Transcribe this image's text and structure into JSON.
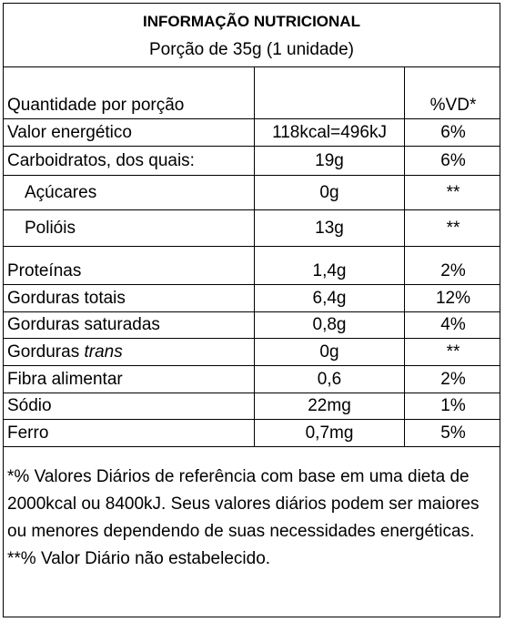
{
  "title": "INFORMAÇÃO NUTRICIONAL",
  "subtitle": "Porção de 35g (1 unidade)",
  "table": {
    "header": {
      "quantity_label": "Quantidade por porção",
      "dv_label": "%VD*"
    },
    "rows": [
      {
        "name": "Valor energético",
        "amount": "118kcal=496kJ",
        "dv": "6%"
      },
      {
        "name": "Carboidratos, dos quais:",
        "amount": "19g",
        "dv": "6%"
      },
      {
        "name": "Açúcares",
        "amount": "0g",
        "dv": "**"
      },
      {
        "name": "Polióis",
        "amount": "13g",
        "dv": "**"
      },
      {
        "name": "Proteínas",
        "amount": "1,4g",
        "dv": "2%"
      },
      {
        "name": "Gorduras totais",
        "amount": "6,4g",
        "dv": "12%"
      },
      {
        "name": "Gorduras saturadas",
        "amount": "0,8g",
        "dv": "4%"
      },
      {
        "name_prefix": "Gorduras ",
        "name_italic": "trans",
        "amount": "0g",
        "dv": "**"
      },
      {
        "name": "Fibra alimentar",
        "amount": "0,6",
        "dv": "2%"
      },
      {
        "name": "Sódio",
        "amount": "22mg",
        "dv": "1%"
      },
      {
        "name": "Ferro",
        "amount": "0,7mg",
        "dv": "5%"
      }
    ]
  },
  "footnotes": {
    "dv_note": "*% Valores Diários de referência com base em uma dieta de 2000kcal ou 8400kJ. Seus valores diários podem ser maiores ou menores dependendo de suas necessidades energéticas.",
    "not_established": "**% Valor Diário não estabelecido."
  }
}
